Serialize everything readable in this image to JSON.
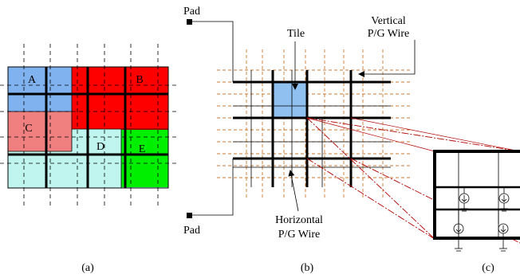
{
  "panel_a": {
    "regions": [
      {
        "label": "A",
        "color": "#7fb2ee"
      },
      {
        "label": "B",
        "color": "#ff0000"
      },
      {
        "label": "C",
        "color": "#f08080"
      },
      {
        "label": "D",
        "color": "#bff5ee"
      },
      {
        "label": "E",
        "color": "#00ee00"
      }
    ],
    "caption": "(a)"
  },
  "panel_b": {
    "pad_top": "Pad",
    "pad_bottom": "Pad",
    "tile_label": "Tile",
    "vertical_label_line1": "Vertical",
    "vertical_label_line2": "P/G Wire",
    "horizontal_label_line1": "Horizontal",
    "horizontal_label_line2": "P/G Wire",
    "tile_color": "#8fc0f0",
    "grid_color": "#c87a30",
    "caption": "(b)"
  },
  "panel_c": {
    "caption": "(c)",
    "zoom_line_color": "#b00000"
  }
}
